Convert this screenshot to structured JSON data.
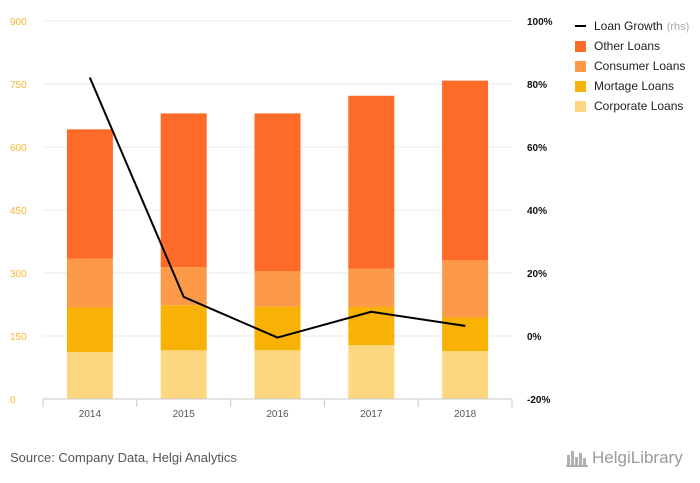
{
  "chart_data": {
    "type": "bar",
    "stacked": true,
    "categories": [
      "2014",
      "2015",
      "2016",
      "2017",
      "2018"
    ],
    "series": [
      {
        "name": "Corporate Loans",
        "color": "#fdd680",
        "values": [
          112,
          116,
          116,
          128,
          114
        ]
      },
      {
        "name": "Mortage Loans",
        "color": "#f8b105",
        "values": [
          106,
          107,
          104,
          91,
          80
        ]
      },
      {
        "name": "Consumer Loans",
        "color": "#fd9a4a",
        "values": [
          116,
          91,
          84,
          91,
          136
        ]
      },
      {
        "name": "Other Loans",
        "color": "#fe6a28",
        "values": [
          308,
          366,
          376,
          412,
          428
        ]
      }
    ],
    "line_series": {
      "name": "Loan Growth",
      "name_suffix": "(rhs)",
      "color": "#000000",
      "axis": "right",
      "values": [
        82,
        12.4,
        -0.5,
        7.7,
        3.2
      ]
    },
    "y_left": {
      "ylim": [
        0,
        900
      ],
      "ticks": [
        "0",
        "150",
        "300",
        "450",
        "600",
        "750",
        "900"
      ]
    },
    "y_right": {
      "ylim": [
        -20,
        100
      ],
      "ticks": [
        "-20%",
        "0%",
        "20%",
        "40%",
        "60%",
        "80%",
        "100%"
      ]
    },
    "legend_position": "top-right",
    "grid": true
  },
  "footer": {
    "source": "Source: Company Data, Helgi Analytics",
    "logo_text": "HelgiLibrary"
  }
}
